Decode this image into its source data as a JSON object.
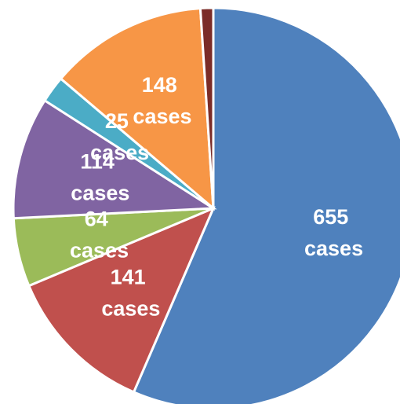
{
  "chart_data": {
    "type": "pie",
    "values": [
      655,
      141,
      64,
      114,
      25,
      148,
      12
    ],
    "value_labels": [
      "655 cases",
      "141 cases",
      "64 cases",
      "114 cases",
      "25 cases",
      "148 cases",
      null
    ],
    "colors": [
      "#4f81bd",
      "#c0504d",
      "#9bbb59",
      "#8064a2",
      "#4bacc6",
      "#f79646",
      "#7b2c28"
    ],
    "start_angle": 0,
    "direction": "clockwise"
  }
}
